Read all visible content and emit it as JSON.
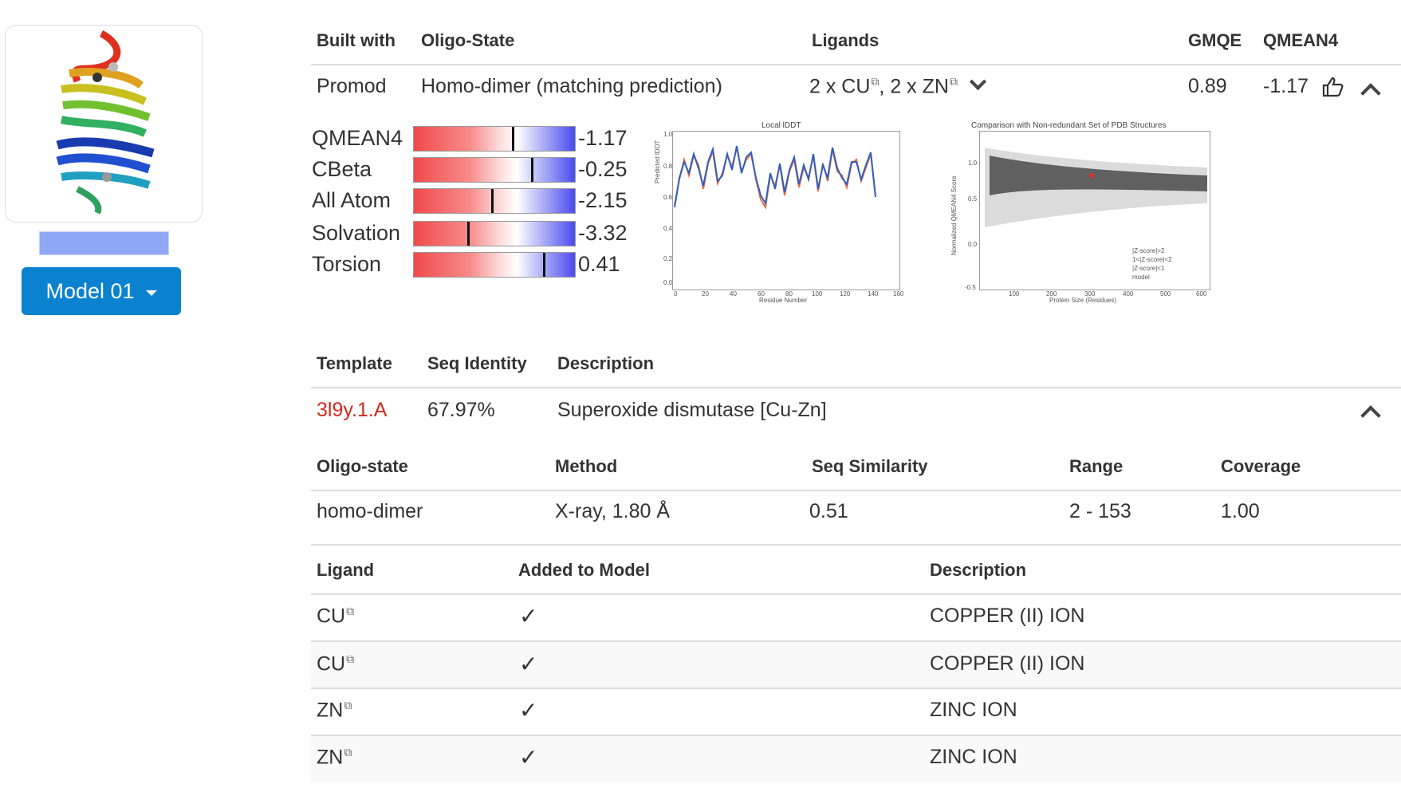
{
  "model_selector": {
    "label": "Model 01"
  },
  "model_table": {
    "headers": [
      "Built with",
      "Oligo-State",
      "Ligands",
      "GMQE",
      "QMEAN4"
    ],
    "row": {
      "built_with": "Promod",
      "oligo_state": "Homo-dimer (matching prediction)",
      "ligand_1": "2 x CU",
      "ligand_sep": ", ",
      "ligand_2": "2 x ZN",
      "gmqe": "0.89",
      "qmean4": "-1.17"
    }
  },
  "quality_scores": [
    {
      "label": "QMEAN4",
      "value": "-1.17",
      "marker_fraction": 0.61
    },
    {
      "label": "CBeta",
      "value": "-0.25",
      "marker_fraction": 0.73
    },
    {
      "label": "All Atom",
      "value": "-2.15",
      "marker_fraction": 0.48
    },
    {
      "label": "Solvation",
      "value": "-3.32",
      "marker_fraction": 0.33
    },
    {
      "label": "Torsion",
      "value": "0.41",
      "marker_fraction": 0.8
    }
  ],
  "local_plot": {
    "title": "Local lDDT",
    "xlabel": "Residue Number",
    "ylabel": "Predicted lDDT",
    "x_ticks": [
      "0",
      "20",
      "40",
      "60",
      "80",
      "100",
      "120",
      "140",
      "160"
    ],
    "y_ticks": [
      "1.0",
      "0.8",
      "0.6",
      "0.4",
      "0.2",
      "0.0"
    ]
  },
  "comparison_plot": {
    "title": "Comparison with Non-redundant Set of PDB Structures",
    "xlabel": "Protein Size (Residues)",
    "ylabel": "Normalized QMEAN4 Score",
    "x_ticks": [
      "100",
      "200",
      "300",
      "400",
      "500",
      "600"
    ],
    "y_ticks": [
      "1.0",
      "0.5",
      "0.0",
      "-0.5"
    ],
    "legend": [
      "|Z-score|>2",
      "1<|Z-score|<2",
      "|Z-score|<1",
      "model"
    ]
  },
  "template_table": {
    "headers": [
      "Template",
      "Seq Identity",
      "Description"
    ],
    "row": {
      "template": "3l9y.1.A",
      "seq_identity": "67.97%",
      "description": "Superoxide dismutase [Cu-Zn]"
    }
  },
  "details_table": {
    "headers": [
      "Oligo-state",
      "Method",
      "Seq Similarity",
      "Range",
      "Coverage"
    ],
    "row": {
      "oligo_state": "homo-dimer",
      "method": "X-ray, 1.80 Å",
      "seq_similarity": "0.51",
      "range": "2 - 153",
      "coverage": "1.00"
    }
  },
  "ligand_table": {
    "headers": [
      "Ligand",
      "Added to Model",
      "Description"
    ],
    "rows": [
      {
        "ligand": "CU",
        "added": "✓",
        "description": "COPPER (II) ION"
      },
      {
        "ligand": "CU",
        "added": "✓",
        "description": "COPPER (II) ION"
      },
      {
        "ligand": "ZN",
        "added": "✓",
        "description": "ZINC ION"
      },
      {
        "ligand": "ZN",
        "added": "✓",
        "description": "ZINC ION"
      }
    ]
  },
  "colors": {
    "button_blue": "#0a82d0",
    "template_link_red": "#d42a1e",
    "bar_red": "#f04a4a",
    "bar_blue": "#4a4af0"
  }
}
